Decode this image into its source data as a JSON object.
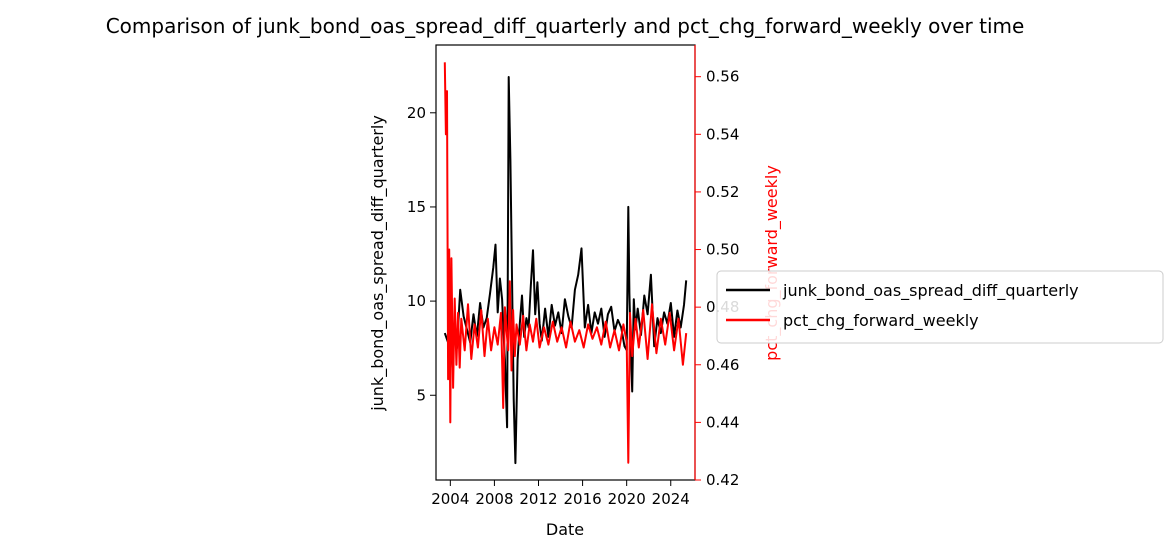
{
  "chart_data": {
    "type": "line",
    "title": "Comparison of junk_bond_oas_spread_diff_quarterly and pct_chg_forward_weekly over time",
    "xlabel": "Date",
    "ylabel": "junk_bond_oas_spread_diff_quarterly",
    "y2label": "pct_chg_forward_weekly",
    "xlim": [
      2002.7,
      2026.2
    ],
    "xticks": [
      2004,
      2008,
      2012,
      2016,
      2020,
      2024
    ],
    "ylim": [
      0.5,
      23.6
    ],
    "yticks": [
      5,
      10,
      15,
      20
    ],
    "y2lim": [
      0.42,
      0.571
    ],
    "y2ticks": [
      0.42,
      0.44,
      0.46,
      0.48,
      0.5,
      0.52,
      0.54,
      0.56
    ],
    "y2color": "#ff0000",
    "legend": "right-outside",
    "grid": false,
    "series": [
      {
        "name": "junk_bond_oas_spread_diff_quarterly",
        "axis": "left",
        "color": "#000000",
        "x": [
          2003.5,
          2003.8,
          2004.0,
          2004.3,
          2004.6,
          2004.9,
          2005.2,
          2005.5,
          2005.8,
          2006.1,
          2006.4,
          2006.7,
          2007.0,
          2007.3,
          2007.6,
          2007.9,
          2008.1,
          2008.3,
          2008.5,
          2008.7,
          2008.85,
          2008.95,
          2009.05,
          2009.15,
          2009.3,
          2009.45,
          2009.6,
          2009.75,
          2009.9,
          2010.1,
          2010.3,
          2010.5,
          2010.7,
          2010.9,
          2011.1,
          2011.3,
          2011.5,
          2011.7,
          2011.9,
          2012.1,
          2012.3,
          2012.6,
          2012.9,
          2013.2,
          2013.5,
          2013.8,
          2014.1,
          2014.4,
          2014.7,
          2015.0,
          2015.3,
          2015.6,
          2015.9,
          2016.2,
          2016.5,
          2016.8,
          2017.1,
          2017.4,
          2017.7,
          2018.0,
          2018.3,
          2018.6,
          2018.9,
          2019.2,
          2019.5,
          2019.8,
          2020.0,
          2020.15,
          2020.25,
          2020.35,
          2020.5,
          2020.65,
          2020.8,
          2021.0,
          2021.3,
          2021.6,
          2021.9,
          2022.2,
          2022.5,
          2022.8,
          2023.1,
          2023.4,
          2023.7,
          2024.0,
          2024.3,
          2024.6,
          2024.9,
          2025.2,
          2025.4
        ],
        "values": [
          8.3,
          7.8,
          6.3,
          8.6,
          7.5,
          10.6,
          9.2,
          8.5,
          7.8,
          9.3,
          8.1,
          9.9,
          8.6,
          9.1,
          10.4,
          11.8,
          13.0,
          9.4,
          11.2,
          10.1,
          8.0,
          6.9,
          5.0,
          3.3,
          21.9,
          17.5,
          11.3,
          4.8,
          1.4,
          6.9,
          8.8,
          10.3,
          8.1,
          9.1,
          8.6,
          10.8,
          12.7,
          9.3,
          11.0,
          8.8,
          7.9,
          9.6,
          8.1,
          9.8,
          8.7,
          9.4,
          8.3,
          10.1,
          9.2,
          8.6,
          10.6,
          11.4,
          12.8,
          8.6,
          9.8,
          8.3,
          9.4,
          8.8,
          9.6,
          8.1,
          9.3,
          9.7,
          8.4,
          9.0,
          8.6,
          7.6,
          7.4,
          15.0,
          10.4,
          8.1,
          5.2,
          10.1,
          8.5,
          9.6,
          8.2,
          10.3,
          9.3,
          11.4,
          7.6,
          9.1,
          8.3,
          9.4,
          8.8,
          9.9,
          8.1,
          9.5,
          8.6,
          9.8,
          11.1
        ]
      },
      {
        "name": "pct_chg_forward_weekly",
        "axis": "right",
        "color": "#ff0000",
        "x": [
          2003.5,
          2003.6,
          2003.7,
          2003.8,
          2003.9,
          2004.0,
          2004.1,
          2004.25,
          2004.4,
          2004.55,
          2004.7,
          2004.85,
          2005.0,
          2005.3,
          2005.6,
          2005.9,
          2006.2,
          2006.5,
          2006.8,
          2007.1,
          2007.4,
          2007.7,
          2008.0,
          2008.3,
          2008.6,
          2008.8,
          2008.95,
          2009.1,
          2009.25,
          2009.4,
          2009.55,
          2009.7,
          2009.85,
          2010.0,
          2010.3,
          2010.6,
          2010.9,
          2011.2,
          2011.5,
          2011.8,
          2012.1,
          2012.5,
          2012.9,
          2013.3,
          2013.7,
          2014.1,
          2014.5,
          2014.9,
          2015.3,
          2015.7,
          2016.1,
          2016.5,
          2016.9,
          2017.3,
          2017.7,
          2018.1,
          2018.5,
          2018.9,
          2019.3,
          2019.7,
          2020.0,
          2020.15,
          2020.3,
          2020.5,
          2020.8,
          2021.1,
          2021.5,
          2021.9,
          2022.3,
          2022.7,
          2023.1,
          2023.5,
          2023.9,
          2024.3,
          2024.7,
          2025.1,
          2025.4
        ],
        "values": [
          0.565,
          0.54,
          0.555,
          0.455,
          0.5,
          0.44,
          0.497,
          0.452,
          0.483,
          0.46,
          0.478,
          0.459,
          0.476,
          0.465,
          0.481,
          0.462,
          0.474,
          0.466,
          0.479,
          0.463,
          0.476,
          0.465,
          0.473,
          0.467,
          0.478,
          0.445,
          0.48,
          0.472,
          0.465,
          0.489,
          0.458,
          0.479,
          0.463,
          0.474,
          0.467,
          0.477,
          0.465,
          0.474,
          0.468,
          0.476,
          0.466,
          0.473,
          0.467,
          0.475,
          0.468,
          0.473,
          0.466,
          0.475,
          0.468,
          0.472,
          0.466,
          0.474,
          0.469,
          0.473,
          0.467,
          0.475,
          0.466,
          0.472,
          0.465,
          0.474,
          0.468,
          0.426,
          0.478,
          0.463,
          0.476,
          0.466,
          0.479,
          0.462,
          0.481,
          0.464,
          0.476,
          0.467,
          0.478,
          0.465,
          0.476,
          0.46,
          0.471
        ]
      }
    ]
  }
}
